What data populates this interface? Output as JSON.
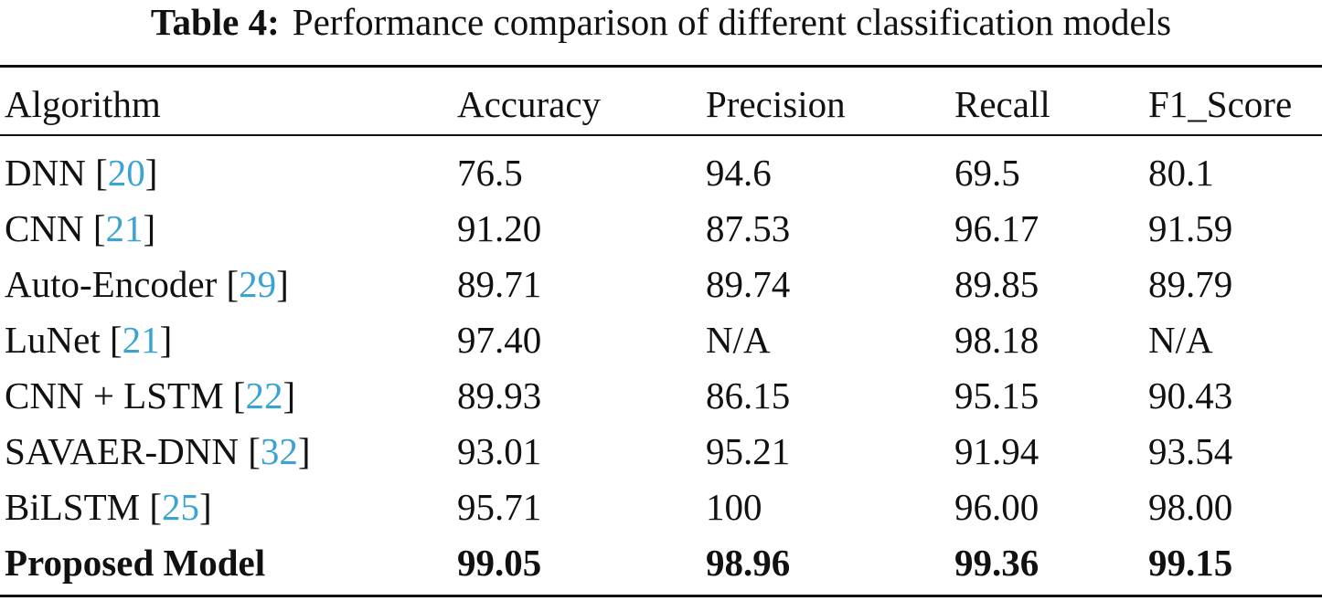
{
  "caption": {
    "label": "Table 4:",
    "text": "Performance comparison of different classification models"
  },
  "table": {
    "headers": [
      "Algorithm",
      "Accuracy",
      "Precision",
      "Recall",
      "F1_Score"
    ],
    "rows": [
      {
        "algorithm": "DNN",
        "ref": "20",
        "accuracy": "76.5",
        "precision": "94.6",
        "recall": "69.5",
        "f1": "80.1"
      },
      {
        "algorithm": "CNN",
        "ref": "21",
        "accuracy": "91.20",
        "precision": "87.53",
        "recall": "96.17",
        "f1": "91.59"
      },
      {
        "algorithm": "Auto-Encoder",
        "ref": "29",
        "accuracy": "89.71",
        "precision": "89.74",
        "recall": "89.85",
        "f1": "89.79"
      },
      {
        "algorithm": "LuNet",
        "ref": "21",
        "accuracy": "97.40",
        "precision": "N/A",
        "recall": "98.18",
        "f1": "N/A"
      },
      {
        "algorithm": "CNN + LSTM",
        "ref": "22",
        "accuracy": "89.93",
        "precision": "86.15",
        "recall": "95.15",
        "f1": "90.43"
      },
      {
        "algorithm": "SAVAER-DNN",
        "ref": "32",
        "accuracy": "93.01",
        "precision": "95.21",
        "recall": "91.94",
        "f1": "93.54"
      },
      {
        "algorithm": "BiLSTM",
        "ref": "25",
        "accuracy": "95.71",
        "precision": "100",
        "recall": "96.00",
        "f1": "98.00"
      },
      {
        "algorithm": "Proposed Model",
        "accuracy": "99.05",
        "precision": "98.96",
        "recall": "99.36",
        "f1": "99.15"
      }
    ]
  }
}
